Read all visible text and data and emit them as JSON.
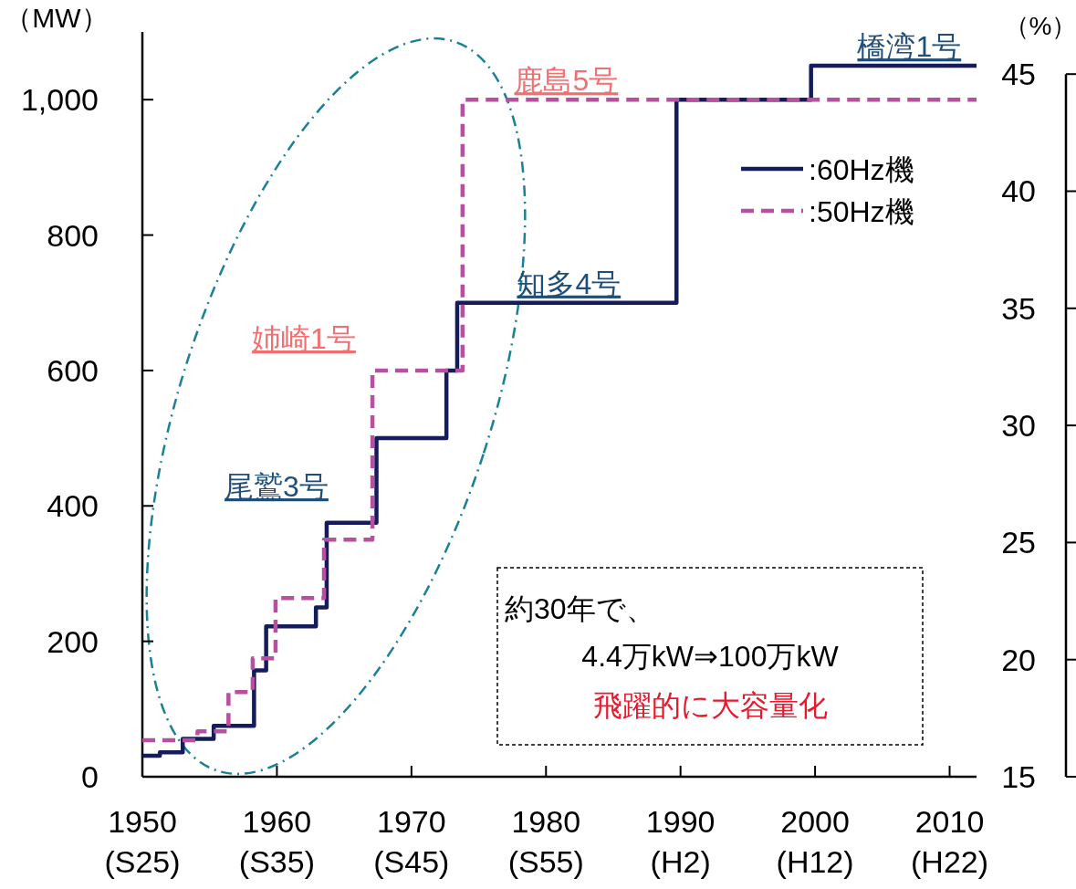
{
  "chart_data": {
    "type": "step",
    "ylabel": "（MW）",
    "y2label": "（%）",
    "xlim": [
      1950,
      2012
    ],
    "ylim": [
      0,
      1100
    ],
    "y2lim": [
      15,
      46.8
    ],
    "xticks": [
      1950,
      1960,
      1970,
      1980,
      1990,
      2000,
      2010
    ],
    "yticks": [
      0,
      200,
      400,
      600,
      800,
      {
        "value": 1000,
        "label": "1,000"
      }
    ],
    "y2ticks": [
      15,
      20,
      25,
      30,
      35,
      40,
      45
    ],
    "legend": "top right",
    "grid": false,
    "series": [
      {
        "name": ":60Hz機",
        "color": "#141c5c",
        "line_style": "solid",
        "x": [
          1950,
          1951.3,
          1953.0,
          1955.3,
          1958.3,
          1959.2,
          1962.9,
          1963.7,
          1967.4,
          1972.6,
          1973.4,
          1989.7,
          1999.7,
          2012
        ],
        "values": [
          31,
          36,
          56,
          75,
          157,
          222,
          250,
          375,
          500,
          600,
          700,
          1000,
          1050,
          1050
        ]
      },
      {
        "name": ":50Hz機",
        "color": "#b94fa0",
        "line_style": "dashed",
        "x": [
          1950,
          1954.1,
          1956.4,
          1958.2,
          1959.9,
          1963.5,
          1967.1,
          1973.8,
          2012
        ],
        "values": [
          54,
          67,
          125,
          175,
          264,
          350,
          600,
          1000,
          1000
        ]
      }
    ],
    "annotations": [
      {
        "text": "橋湾1号",
        "x": 2007,
        "y": 1050
      },
      {
        "text": "鹿島5号",
        "x": 1981.5,
        "y": 1000
      },
      {
        "text": "知多4号",
        "x": 1981.7,
        "y": 700
      },
      "姉崎1号",
      "尾鷲3号",
      "約30年で、",
      "4.4万kW⇒100万kW",
      "飛躍的に大容量化",
      "(S25)",
      "(S35)",
      "(S45)",
      "(S55)",
      "(H2)",
      "(H12)",
      "(H22)"
    ]
  }
}
